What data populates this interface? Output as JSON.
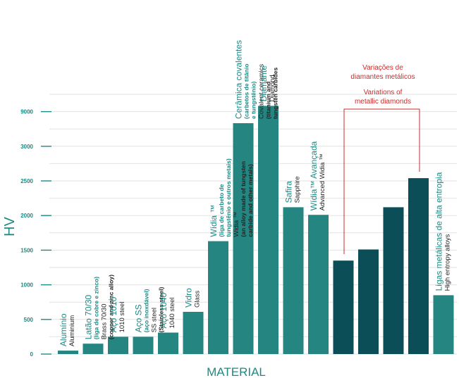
{
  "chart_data": {
    "type": "bar",
    "xlabel": "MATERIAL",
    "ylabel": "HV",
    "y_ticks": [
      "0",
      "500",
      "1000",
      "1500",
      "2000",
      "2500",
      "3000",
      "9000"
    ],
    "grid": true,
    "colors": {
      "teal": "#258580",
      "dark": "#0c4e57",
      "axis": "#1e8a84",
      "annotation": "#cc2b2b"
    },
    "bars": [
      {
        "pt": [
          "Alumínio"
        ],
        "en": [
          "Aluminium"
        ],
        "value": 50,
        "color": "teal"
      },
      {
        "pt": [
          "Latão 70/30",
          "(liga de cobre e zinco)"
        ],
        "en": [
          "Brass 70/30",
          "(copper and zinc alloy)"
        ],
        "value": 150,
        "color": "teal"
      },
      {
        "pt": [
          "Aço 1010"
        ],
        "en": [
          "1010 steel"
        ],
        "value": 250,
        "color": "teal"
      },
      {
        "pt": [
          "Aço SS",
          "(aço inoxdável)"
        ],
        "en": [
          "SS steel",
          "(Stainless steel)"
        ],
        "value": 250,
        "color": "teal"
      },
      {
        "pt": [
          "Aço 1040"
        ],
        "en": [
          "1040 steel"
        ],
        "value": 310,
        "color": "teal"
      },
      {
        "pt": [
          "Vidro"
        ],
        "en": [
          "Glass"
        ],
        "value": 610,
        "color": "teal"
      },
      {
        "pt": [
          "Wídia ™",
          "(liga de carbeto de",
          "tungstênio e outros metais)"
        ],
        "en": [
          "Widia ™",
          "(an alloy made of tungsten",
          "carbide and other metals)"
        ],
        "value": 1630,
        "color": "teal"
      },
      {
        "pt": [
          "Cerâmica covalentes",
          "(carbetos de titânio",
          "e tungstênio)"
        ],
        "en": [
          "Covalent ceramics",
          "(titanium and",
          "tungsten carbides"
        ],
        "value": 7000,
        "color": "teal"
      },
      {
        "pt": [
          "Diamante"
        ],
        "en": [
          "Diamond"
        ],
        "value": 10000,
        "color": "teal"
      },
      {
        "pt": [
          "Safira"
        ],
        "en": [
          "Sapphire"
        ],
        "value": 2120,
        "color": "teal"
      },
      {
        "pt": [
          "Wídia™ Avançada"
        ],
        "en": [
          "Advanced Widia ™"
        ],
        "value": 2010,
        "color": "teal"
      },
      {
        "pt": [],
        "en": [],
        "value": 1350,
        "color": "dark"
      },
      {
        "pt": [],
        "en": [],
        "value": 1510,
        "color": "dark"
      },
      {
        "pt": [],
        "en": [],
        "value": 2120,
        "color": "dark"
      },
      {
        "pt": [],
        "en": [],
        "value": 2540,
        "color": "dark"
      },
      {
        "pt": [
          "Ligas metálicas de alta entropia"
        ],
        "en": [
          "High entropy alloys"
        ],
        "value": 850,
        "color": "teal"
      }
    ],
    "annotation": [
      "Variações de",
      "diamantes metálicos",
      "Variations of",
      "metallic diamonds"
    ]
  }
}
